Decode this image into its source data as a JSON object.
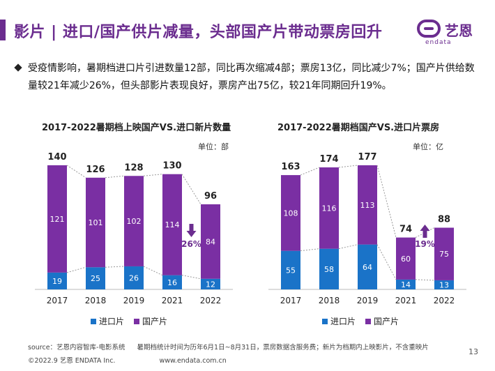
{
  "header": {
    "title": "影片 | 进口/国产供片减量，头部国产片带动票房回升",
    "logo_cn": "艺恩",
    "logo_en": "endata"
  },
  "bullet": "受疫情影响，暑期档进口片引进数量12部，同比再次缩减4部；票房13亿，同比减少7%；国产片供给数量较21年减少26%，但头部影片表现良好，票房产出75亿，较21年同期回升19%。",
  "colors": {
    "imported": "#1a73c8",
    "domestic": "#7a2fa3",
    "accent": "#6b2d8f"
  },
  "chart_data": [
    {
      "type": "bar",
      "stacked": true,
      "title": "2017-2022暑期档上映国产VS.进口新片数量",
      "unit": "单位：部",
      "categories": [
        "2017",
        "2018",
        "2019",
        "2021",
        "2022"
      ],
      "series": [
        {
          "name": "进口片",
          "values": [
            19,
            25,
            26,
            16,
            12
          ]
        },
        {
          "name": "国产片",
          "values": [
            121,
            101,
            102,
            114,
            84
          ]
        }
      ],
      "totals": [
        140,
        126,
        128,
        130,
        96
      ],
      "annotation": {
        "text": "26%",
        "direction": "down",
        "between": [
          "2021",
          "2022"
        ]
      },
      "ymax": 140,
      "legend": "bottom"
    },
    {
      "type": "bar",
      "stacked": true,
      "title": "2017-2022暑期档国产VS.进口片票房",
      "unit": "单位：亿",
      "categories": [
        "2017",
        "2018",
        "2019",
        "2021",
        "2022"
      ],
      "series": [
        {
          "name": "进口片",
          "values": [
            55,
            58,
            64,
            14,
            13
          ]
        },
        {
          "name": "国产片",
          "values": [
            108,
            116,
            113,
            60,
            75
          ]
        }
      ],
      "totals": [
        163,
        174,
        177,
        74,
        88
      ],
      "annotation": {
        "text": "19%",
        "direction": "up",
        "between": [
          "2021",
          "2022"
        ]
      },
      "ymax": 177,
      "legend": "bottom"
    }
  ],
  "footer": {
    "source": "source：艺恩内容智库-电影系统",
    "note": "暑期档统计时间为历年6月1日~8月31日，票房数据含服务费；新片为档期内上映影片，不含重映片",
    "copyright": "©2022.9 艺恩 ENDATA Inc.",
    "website": "www.endata.com.cn",
    "page": "13"
  }
}
